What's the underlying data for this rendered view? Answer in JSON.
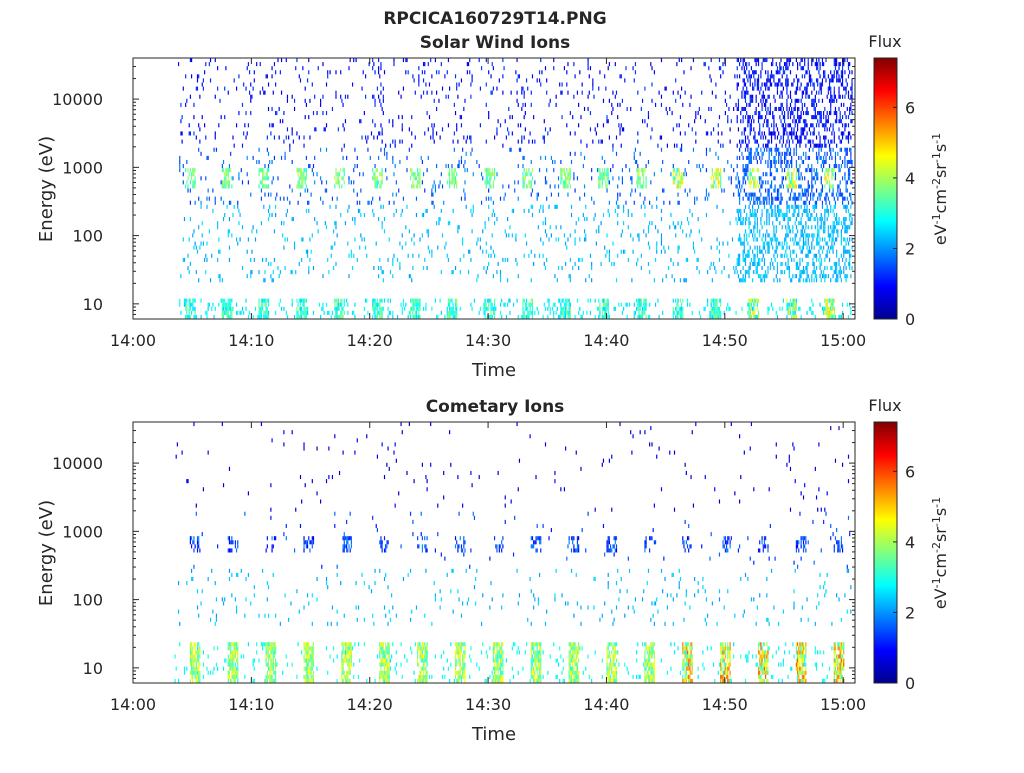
{
  "figure": {
    "title": "RPCICA160729T14.PNG"
  },
  "chart_data": [
    {
      "type": "heatmap",
      "title": "Solar Wind Ions",
      "xlabel": "Time",
      "ylabel": "Energy (eV)",
      "x_ticks": [
        "14:00",
        "14:10",
        "14:20",
        "14:30",
        "14:40",
        "14:50",
        "15:00"
      ],
      "y_ticks": [
        "10",
        "100",
        "1000",
        "10000"
      ],
      "y_scale": "log",
      "ylim": [
        6,
        40000
      ],
      "xlim_minutes": [
        0,
        61
      ],
      "colorbar": {
        "title": "Flux",
        "label": "eV-1cm-2sr-1s-1",
        "ticks": [
          "0",
          "2",
          "4",
          "6"
        ],
        "range": [
          0,
          7.4
        ],
        "colormap": "jet"
      },
      "data_start_minute": 3.8,
      "bursts_minutes": [
        4.8,
        7.9,
        11.0,
        14.2,
        17.4,
        20.6,
        23.8,
        26.9,
        30.1,
        33.3,
        36.5,
        39.7,
        42.9,
        46.0,
        49.2,
        52.4,
        55.6,
        58.8
      ],
      "features": [
        {
          "name": "low-energy band",
          "energy_eV": [
            6,
            12
          ],
          "flux": [
            2.5,
            5.0
          ]
        },
        {
          "name": "solar wind peak",
          "energy_eV": [
            500,
            1000
          ],
          "flux": [
            3.0,
            5.0
          ]
        },
        {
          "name": "background",
          "energy_eV": [
            20,
            30000
          ],
          "flux": [
            0.5,
            2.5
          ]
        }
      ]
    },
    {
      "type": "heatmap",
      "title": "Cometary Ions",
      "xlabel": "Time",
      "ylabel": "Energy (eV)",
      "x_ticks": [
        "14:00",
        "14:10",
        "14:20",
        "14:30",
        "14:40",
        "14:50",
        "15:00"
      ],
      "y_ticks": [
        "10",
        "100",
        "1000",
        "10000"
      ],
      "y_scale": "log",
      "ylim": [
        6,
        40000
      ],
      "xlim_minutes": [
        0,
        61
      ],
      "colorbar": {
        "title": "Flux",
        "label": "eV-1cm-2sr-1s-1",
        "ticks": [
          "0",
          "2",
          "4",
          "6"
        ],
        "range": [
          0,
          7.4
        ],
        "colormap": "jet"
      },
      "data_start_minute": 3.5,
      "bursts_minutes": [
        5.2,
        8.4,
        11.6,
        14.8,
        18.0,
        21.2,
        24.4,
        27.6,
        30.8,
        34.0,
        37.2,
        40.4,
        43.6,
        46.8,
        50.0,
        53.2,
        56.4,
        59.6
      ],
      "features": [
        {
          "name": "low-energy cometary band",
          "energy_eV": [
            6,
            25
          ],
          "flux": [
            3.0,
            6.0
          ]
        },
        {
          "name": "1 keV patches",
          "energy_eV": [
            500,
            800
          ],
          "flux": [
            0.8,
            2.0
          ]
        },
        {
          "name": "sparse background",
          "energy_eV": [
            40,
            30000
          ],
          "flux": [
            0.3,
            2.5
          ]
        }
      ]
    }
  ]
}
